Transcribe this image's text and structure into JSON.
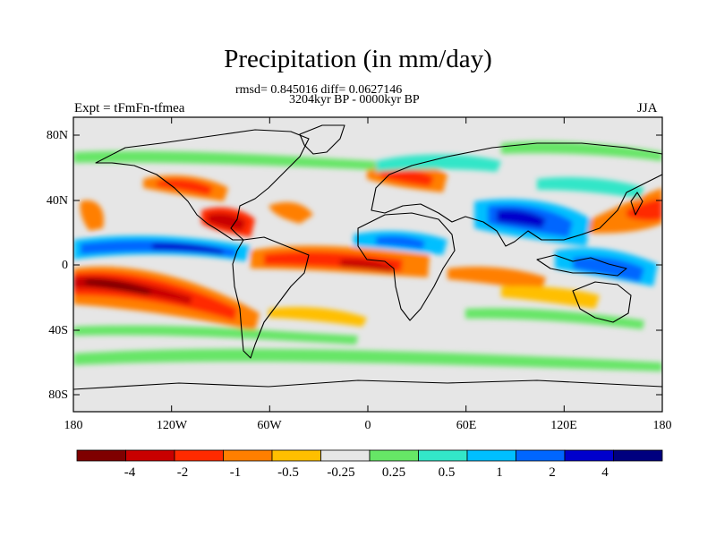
{
  "header": {
    "title": "Precipitation (in mm/day)",
    "stats": "rmsd= 0.845016 diff= 0.0627146",
    "period": "3204kyr BP - 0000kyr BP",
    "left_label": "Expt = tFmFn-tfmea",
    "right_label": "JJA"
  },
  "map": {
    "background_color": "#e6e6e6",
    "lon_range": [
      -180,
      180
    ],
    "lat_range": [
      -90,
      90
    ],
    "x_tick_labels": [
      "180",
      "120W",
      "60W",
      "0",
      "60E",
      "120E",
      "180"
    ],
    "y_tick_labels": [
      "80N",
      "40N",
      "0",
      "40S",
      "80S"
    ]
  },
  "colorbar": {
    "colors": [
      "#7f0000",
      "#c80000",
      "#ff2a00",
      "#ff7f00",
      "#ffbf00",
      "#e6e6e6",
      "#66e666",
      "#33e6c8",
      "#00bfff",
      "#0066ff",
      "#0000cc",
      "#00007f"
    ],
    "labels": [
      "-4",
      "-2",
      "-1",
      "-0.5",
      "-0.25",
      "0.25",
      "0.5",
      "1",
      "2",
      "4"
    ]
  }
}
